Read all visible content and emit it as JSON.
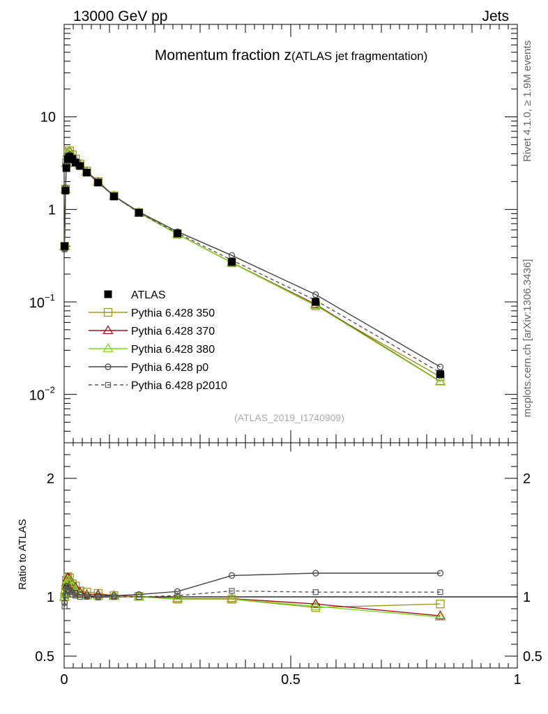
{
  "header": {
    "energy": "13000 GeV pp",
    "category": "Jets"
  },
  "side": {
    "rivet": "Rivet 4.1.0, ≥ 1.9M events",
    "site": "mcplots.cern.ch [arXiv:1306.3436]"
  },
  "chart_data": {
    "type": "line",
    "title": "Momentum fraction z",
    "subtitle": "(ATLAS jet fragmentation)",
    "analysis": "(ATLAS_2019_I1740909)",
    "yscale": "log",
    "xlim": [
      0,
      1
    ],
    "ylim_main": [
      0.003,
      100
    ],
    "ylim_ratio": [
      0.4,
      2.3
    ],
    "xticks": [
      0,
      0.5,
      1
    ],
    "xtick_labels": [
      "0",
      "0.5",
      "1"
    ],
    "yticks_main": [
      1,
      10
    ],
    "ytick_labels_main": [
      "1",
      "10"
    ],
    "yticks_main_exp": [
      0.1,
      0.01
    ],
    "ytick_main_exp_labels": [
      {
        "base": "10",
        "exp": "−1"
      },
      {
        "base": "10",
        "exp": "−2"
      }
    ],
    "yticks_ratio": [
      0.5,
      1,
      2
    ],
    "ytick_labels_ratio": [
      "0.5",
      "1",
      "2"
    ],
    "ratio_ylabel": "Ratio to ATLAS",
    "legend_position": "middle-left",
    "x": [
      0.001,
      0.003,
      0.005,
      0.008,
      0.012,
      0.018,
      0.025,
      0.035,
      0.05,
      0.075,
      0.11,
      0.165,
      0.25,
      0.37,
      0.555,
      0.83
    ],
    "series": [
      {
        "name": "ATLAS",
        "color": "#000000",
        "marker": "filled-square",
        "style": "none",
        "values": [
          0.4,
          1.6,
          2.8,
          3.5,
          3.7,
          3.5,
          3.2,
          2.95,
          2.5,
          1.95,
          1.38,
          0.92,
          0.55,
          0.27,
          0.1,
          0.0165
        ]
      },
      {
        "name": "Pythia 6.428 350",
        "color": "#9a9a22",
        "marker": "open-square",
        "style": "solid",
        "values": [
          0.4,
          1.66,
          3.2,
          4.1,
          4.3,
          3.9,
          3.5,
          3.1,
          2.6,
          2.0,
          1.4,
          0.925,
          0.54,
          0.265,
          0.091,
          0.0155
        ]
      },
      {
        "name": "Pythia 6.428 370",
        "color": "#a01020",
        "marker": "open-triangle",
        "style": "solid",
        "values": [
          0.4,
          1.64,
          3.15,
          4.05,
          4.25,
          3.85,
          3.45,
          3.05,
          2.55,
          1.98,
          1.4,
          0.92,
          0.54,
          0.266,
          0.094,
          0.0138
        ]
      },
      {
        "name": "Pythia 6.428 380",
        "color": "#7dd81c",
        "marker": "open-triangle",
        "style": "solid",
        "values": [
          0.4,
          1.64,
          3.12,
          4.0,
          4.2,
          3.8,
          3.4,
          3.0,
          2.52,
          1.96,
          1.39,
          0.92,
          0.54,
          0.265,
          0.092,
          0.0137
        ]
      },
      {
        "name": "Pythia 6.428 p0",
        "color": "#444444",
        "marker": "open-circle",
        "style": "solid",
        "values": [
          0.38,
          1.72,
          3.05,
          3.8,
          3.9,
          3.65,
          3.3,
          3.0,
          2.53,
          1.96,
          1.4,
          0.94,
          0.575,
          0.318,
          0.12,
          0.0198
        ]
      },
      {
        "name": "Pythia 6.428 p2010",
        "color": "#555555",
        "marker": "open-small-square",
        "style": "dashed",
        "values": [
          0.37,
          1.62,
          2.95,
          3.7,
          3.85,
          3.58,
          3.22,
          2.96,
          2.51,
          1.94,
          1.39,
          0.92,
          0.555,
          0.283,
          0.104,
          0.0172
        ]
      }
    ],
    "ratio_series": [
      {
        "name": "Pythia 6.428 350",
        "values": [
          1.0,
          1.04,
          1.14,
          1.17,
          1.16,
          1.11,
          1.09,
          1.05,
          1.04,
          1.03,
          1.01,
          1.005,
          0.98,
          0.98,
          0.91,
          0.94
        ]
      },
      {
        "name": "Pythia 6.428 370",
        "values": [
          1.0,
          1.03,
          1.12,
          1.16,
          1.15,
          1.1,
          1.08,
          1.04,
          1.02,
          1.02,
          1.01,
          1.0,
          0.985,
          0.985,
          0.94,
          0.84
        ]
      },
      {
        "name": "Pythia 6.428 380",
        "values": [
          1.0,
          1.03,
          1.11,
          1.14,
          1.14,
          1.09,
          1.06,
          1.02,
          1.01,
          1.005,
          1.005,
          0.998,
          0.982,
          0.982,
          0.92,
          0.83
        ]
      },
      {
        "name": "Pythia 6.428 p0",
        "values": [
          0.95,
          1.07,
          1.09,
          1.09,
          1.05,
          1.04,
          1.03,
          1.02,
          1.01,
          1.005,
          1.01,
          1.02,
          1.045,
          1.18,
          1.2,
          1.2
        ]
      },
      {
        "name": "Pythia 6.428 p2010",
        "values": [
          0.92,
          1.01,
          1.05,
          1.06,
          1.04,
          1.02,
          1.01,
          1.0,
          1.0,
          0.995,
          1.0,
          1.0,
          1.01,
          1.05,
          1.04,
          1.04
        ]
      }
    ]
  }
}
